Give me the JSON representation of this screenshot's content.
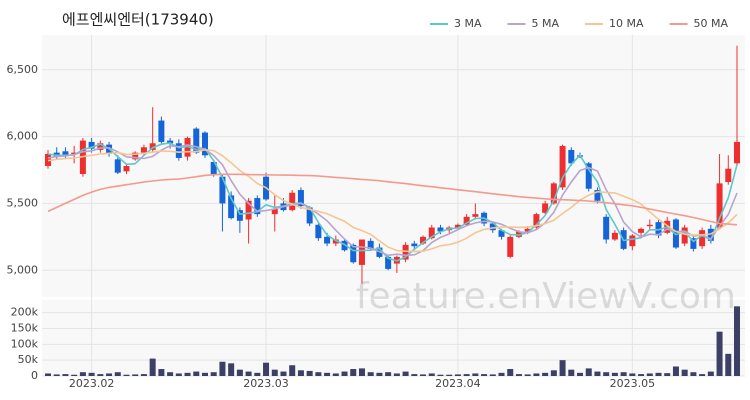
{
  "chart_data": {
    "type": "candlestick",
    "title": "에프엔씨엔터(173940)",
    "watermark": "feature.enViewV.com",
    "categories": [
      null,
      null,
      null,
      null,
      null,
      "2023.02",
      null,
      null,
      null,
      null,
      null,
      null,
      null,
      null,
      null,
      null,
      null,
      null,
      null,
      null,
      null,
      null,
      null,
      null,
      null,
      "2023.03",
      null,
      null,
      null,
      null,
      null,
      null,
      null,
      null,
      null,
      null,
      null,
      null,
      null,
      null,
      null,
      null,
      null,
      null,
      null,
      null,
      null,
      "2023.04",
      null,
      null,
      null,
      null,
      null,
      null,
      null,
      null,
      null,
      null,
      null,
      null,
      null,
      null,
      null,
      null,
      null,
      null,
      null,
      "2023.05",
      null,
      null,
      null,
      null,
      null,
      null,
      null,
      null,
      null,
      null,
      null,
      null
    ],
    "open": [
      5780,
      5880,
      5890,
      5870,
      5720,
      5960,
      5900,
      5940,
      5830,
      5740,
      5830,
      5880,
      5900,
      6120,
      5970,
      5950,
      5850,
      6060,
      6030,
      5810,
      5700,
      5560,
      5450,
      5380,
      5540,
      5700,
      5420,
      5500,
      5450,
      5600,
      5470,
      5340,
      5250,
      5200,
      5220,
      5190,
      5040,
      5220,
      5170,
      5100,
      5050,
      5080,
      5200,
      5200,
      5240,
      5320,
      5300,
      5320,
      5340,
      5400,
      5430,
      5350,
      5300,
      5100,
      5250,
      5290,
      5320,
      5430,
      5500,
      5620,
      5900,
      5860,
      5800,
      5600,
      5400,
      5230,
      5300,
      5180,
      5280,
      5330,
      5360,
      5280,
      5380,
      5200,
      5240,
      5180,
      5310,
      5320,
      5660,
      5800
    ],
    "high": [
      5900,
      5920,
      5920,
      5930,
      5990,
      5990,
      5970,
      5960,
      5860,
      5800,
      5890,
      5940,
      6220,
      6150,
      5990,
      5980,
      6000,
      6070,
      6040,
      5820,
      5720,
      5590,
      5470,
      5540,
      5560,
      5730,
      5560,
      5540,
      5600,
      5620,
      5480,
      5350,
      5280,
      5260,
      5230,
      5200,
      5230,
      5240,
      5200,
      5110,
      5110,
      5210,
      5220,
      5260,
      5340,
      5340,
      5330,
      5350,
      5420,
      5500,
      5440,
      5360,
      5310,
      5260,
      5300,
      5330,
      5430,
      5520,
      5660,
      5940,
      5920,
      5880,
      5810,
      5620,
      5420,
      5300,
      5320,
      5270,
      5320,
      5380,
      5380,
      5400,
      5390,
      5340,
      5260,
      5320,
      5340,
      5870,
      5860,
      6680
    ],
    "low": [
      5760,
      5830,
      5840,
      5800,
      5700,
      5880,
      5880,
      5850,
      5720,
      5720,
      5820,
      5860,
      5880,
      5940,
      5910,
      5820,
      5820,
      5870,
      5840,
      5700,
      5290,
      5380,
      5280,
      5200,
      5400,
      5520,
      5290,
      5440,
      5440,
      5460,
      5330,
      5220,
      5180,
      5180,
      5140,
      5050,
      4900,
      5150,
      5090,
      5000,
      4980,
      5060,
      5160,
      5190,
      5230,
      5270,
      5280,
      5300,
      5330,
      5380,
      5330,
      5280,
      5230,
      5090,
      5240,
      5270,
      5310,
      5420,
      5490,
      5600,
      5780,
      5840,
      5590,
      5500,
      5200,
      5220,
      5150,
      5150,
      5240,
      5300,
      5240,
      5270,
      5160,
      5180,
      5140,
      5160,
      5200,
      5320,
      5640,
      5780
    ],
    "close": [
      5870,
      5850,
      5860,
      5880,
      5970,
      5910,
      5950,
      5870,
      5730,
      5780,
      5880,
      5920,
      5950,
      5960,
      5950,
      5840,
      5990,
      5880,
      5860,
      5720,
      5500,
      5390,
      5370,
      5520,
      5420,
      5530,
      5460,
      5450,
      5580,
      5480,
      5350,
      5240,
      5200,
      5230,
      5150,
      5060,
      5230,
      5160,
      5100,
      5010,
      5100,
      5190,
      5180,
      5250,
      5320,
      5290,
      5320,
      5340,
      5400,
      5420,
      5350,
      5300,
      5250,
      5250,
      5290,
      5310,
      5420,
      5500,
      5650,
      5930,
      5800,
      5850,
      5610,
      5520,
      5230,
      5280,
      5160,
      5260,
      5310,
      5340,
      5260,
      5370,
      5170,
      5320,
      5160,
      5300,
      5220,
      5650,
      5760,
      5960
    ],
    "up_color": "#ef2f2f",
    "down_color": "#1565d8",
    "ylim": [
      4800,
      6760
    ],
    "yticks": [
      {
        "value": 5000,
        "label": "5,000"
      },
      {
        "value": 5500,
        "label": "5,500"
      },
      {
        "value": 6000,
        "label": "6,000"
      },
      {
        "value": 6500,
        "label": "6,500"
      }
    ],
    "grid": true,
    "series": [
      {
        "name": "3 MA",
        "color": "#5cc8cc",
        "values": [
          5870,
          5860,
          5860,
          5863,
          5903,
          5920,
          5943,
          5910,
          5850,
          5793,
          5797,
          5860,
          5917,
          5943,
          5953,
          5917,
          5927,
          5903,
          5910,
          5820,
          5693,
          5537,
          5420,
          5427,
          5437,
          5490,
          5470,
          5480,
          5497,
          5503,
          5470,
          5357,
          5263,
          5223,
          5193,
          5147,
          5147,
          5150,
          5163,
          5090,
          5070,
          5100,
          5157,
          5207,
          5250,
          5287,
          5310,
          5317,
          5353,
          5387,
          5390,
          5357,
          5300,
          5267,
          5263,
          5283,
          5340,
          5410,
          5523,
          5693,
          5793,
          5860,
          5753,
          5660,
          5453,
          5343,
          5223,
          5233,
          5243,
          5303,
          5303,
          5323,
          5267,
          5287,
          5217,
          5260,
          5227,
          5390,
          5543,
          5790
        ]
      },
      {
        "name": "5 MA",
        "color": "#b9a3cf",
        "values": [
          5840,
          5850,
          5855,
          5865,
          5886,
          5894,
          5914,
          5916,
          5886,
          5848,
          5842,
          5836,
          5852,
          5898,
          5932,
          5924,
          5938,
          5924,
          5904,
          5858,
          5790,
          5670,
          5568,
          5500,
          5440,
          5446,
          5460,
          5476,
          5488,
          5500,
          5464,
          5420,
          5370,
          5300,
          5234,
          5176,
          5174,
          5166,
          5140,
          5112,
          5120,
          5112,
          5116,
          5146,
          5208,
          5246,
          5272,
          5304,
          5334,
          5354,
          5366,
          5362,
          5344,
          5314,
          5288,
          5280,
          5304,
          5354,
          5434,
          5562,
          5660,
          5746,
          5768,
          5742,
          5602,
          5498,
          5360,
          5290,
          5248,
          5270,
          5266,
          5308,
          5290,
          5292,
          5256,
          5264,
          5234,
          5330,
          5418,
          5578
        ]
      },
      {
        "name": "10 MA",
        "color": "#f5c592",
        "values": [
          5820,
          5830,
          5835,
          5840,
          5850,
          5860,
          5870,
          5875,
          5880,
          5867,
          5868,
          5875,
          5884,
          5892,
          5890,
          5883,
          5887,
          5888,
          5901,
          5895,
          5857,
          5804,
          5746,
          5702,
          5649,
          5618,
          5565,
          5522,
          5494,
          5470,
          5455,
          5440,
          5423,
          5394,
          5367,
          5320,
          5297,
          5268,
          5220,
          5173,
          5148,
          5143,
          5141,
          5143,
          5160,
          5183,
          5192,
          5210,
          5240,
          5281,
          5306,
          5317,
          5324,
          5324,
          5321,
          5323,
          5333,
          5349,
          5374,
          5425,
          5470,
          5525,
          5561,
          5588,
          5582,
          5579,
          5553,
          5529,
          5495,
          5436,
          5382,
          5334,
          5290,
          5270,
          5263,
          5265,
          5271,
          5310,
          5355,
          5417
        ]
      },
      {
        "name": "50 MA",
        "color": "#f49a8c",
        "values": [
          5440,
          5470,
          5500,
          5530,
          5560,
          5585,
          5605,
          5620,
          5630,
          5640,
          5650,
          5660,
          5668,
          5675,
          5680,
          5682,
          5690,
          5700,
          5710,
          5715,
          5718,
          5718,
          5718,
          5716,
          5715,
          5714,
          5713,
          5712,
          5711,
          5710,
          5708,
          5705,
          5700,
          5695,
          5690,
          5685,
          5680,
          5675,
          5670,
          5662,
          5655,
          5648,
          5640,
          5632,
          5625,
          5617,
          5610,
          5602,
          5595,
          5588,
          5580,
          5572,
          5565,
          5558,
          5550,
          5545,
          5540,
          5535,
          5530,
          5528,
          5525,
          5522,
          5518,
          5512,
          5505,
          5498,
          5490,
          5482,
          5470,
          5458,
          5445,
          5432,
          5420,
          5408,
          5395,
          5380,
          5365,
          5350,
          5345,
          5340
        ]
      }
    ],
    "volume": {
      "color": "#3c3f66",
      "values": [
        8000,
        5000,
        6000,
        4000,
        12000,
        10000,
        6000,
        8000,
        12000,
        4000,
        5000,
        6000,
        55000,
        22000,
        12000,
        8000,
        10000,
        14000,
        10000,
        12000,
        45000,
        40000,
        20000,
        14000,
        10000,
        42000,
        20000,
        14000,
        34000,
        18000,
        16000,
        12000,
        10000,
        8000,
        14000,
        22000,
        24000,
        12000,
        10000,
        12000,
        8000,
        14000,
        6000,
        5000,
        8000,
        4000,
        4000,
        5000,
        6000,
        8000,
        6000,
        5000,
        10000,
        22000,
        6000,
        5000,
        8000,
        10000,
        18000,
        50000,
        20000,
        10000,
        24000,
        14000,
        12000,
        10000,
        12000,
        8000,
        6000,
        8000,
        10000,
        9000,
        30000,
        20000,
        12000,
        6000,
        14000,
        140000,
        70000,
        220000
      ],
      "ylim": [
        0,
        240000
      ],
      "yticks": [
        0,
        {
          "value": 50000,
          "label": "50k"
        },
        {
          "value": 100000,
          "label": "100k"
        },
        {
          "value": 150000,
          "label": "150k"
        },
        {
          "value": 200000,
          "label": "200k"
        }
      ]
    }
  }
}
